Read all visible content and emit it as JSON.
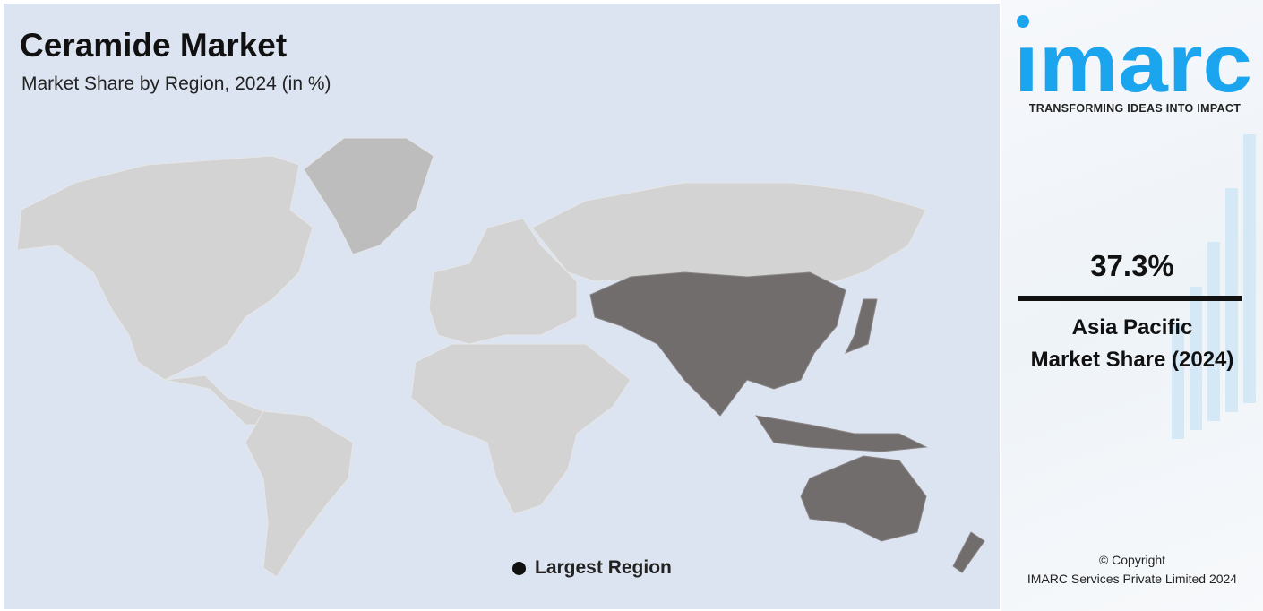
{
  "header": {
    "title": "Ceramide Market",
    "subtitle": "Market Share by Region, 2024 (in %)"
  },
  "map": {
    "highlighted_region": "Asia Pacific",
    "colors": {
      "background": "#dce4f1",
      "land": "#d3d3d3",
      "highlight": "#726d6d"
    },
    "legend": {
      "label": "Largest Region",
      "marker_color": "#111111"
    }
  },
  "sidebar": {
    "logo_text": "imarc",
    "logo_color": "#1ba5ef",
    "tagline": "TRANSFORMING IDEAS INTO IMPACT",
    "value": "37.3%",
    "region_line1": "Asia Pacific",
    "region_line2": "Market Share (2024)",
    "copyright_line1": "© Copyright",
    "copyright_line2": "IMARC Services Private Limited 2024"
  }
}
